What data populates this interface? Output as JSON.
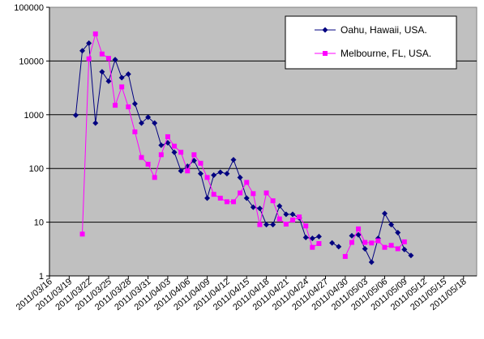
{
  "chart_data": {
    "type": "line",
    "title": "",
    "xlabel": "",
    "ylabel": "",
    "y_scale": "log",
    "ylim": [
      1,
      100000
    ],
    "y_ticks": [
      "1",
      "10",
      "100",
      "1000",
      "10000",
      "100000"
    ],
    "x_range": [
      "2011/03/16",
      "2011/05/20"
    ],
    "x_tick_labels": [
      "2011/03/16",
      "2011/03/19",
      "2011/03/22",
      "2011/03/25",
      "2011/03/28",
      "2011/03/31",
      "2011/04/03",
      "2011/04/06",
      "2011/04/09",
      "2011/04/12",
      "2011/04/15",
      "2011/04/18",
      "2011/04/21",
      "2011/04/24",
      "2011/04/27",
      "2011/04/30",
      "2011/05/03",
      "2011/05/06",
      "2011/05/09",
      "2011/05/12",
      "2011/05/15",
      "2011/05/18"
    ],
    "grid": "horizontal",
    "plot_background": "#c0c0c0",
    "legend_position": "top-right",
    "series": [
      {
        "name": "Oahu, Hawaii, USA.",
        "color": "#000080",
        "marker": "diamond",
        "points": [
          [
            "2011/03/20",
            980
          ],
          [
            "2011/03/21",
            15500
          ],
          [
            "2011/03/22",
            21500
          ],
          [
            "2011/03/23",
            700
          ],
          [
            "2011/03/24",
            6300
          ],
          [
            "2011/03/25",
            4200
          ],
          [
            "2011/03/26",
            10600
          ],
          [
            "2011/03/27",
            4900
          ],
          [
            "2011/03/28",
            5700
          ],
          [
            "2011/03/29",
            1600
          ],
          [
            "2011/03/30",
            700
          ],
          [
            "2011/03/31",
            900
          ],
          [
            "2011/04/01",
            700
          ],
          [
            "2011/04/02",
            270
          ],
          [
            "2011/04/03",
            300
          ],
          [
            "2011/04/04",
            200
          ],
          [
            "2011/04/05",
            90
          ],
          [
            "2011/04/06",
            110
          ],
          [
            "2011/04/07",
            140
          ],
          [
            "2011/04/08",
            80
          ],
          [
            "2011/04/09",
            28
          ],
          [
            "2011/04/10",
            75
          ],
          [
            "2011/04/11",
            85
          ],
          [
            "2011/04/12",
            80
          ],
          [
            "2011/04/13",
            145
          ],
          [
            "2011/04/14",
            68
          ],
          [
            "2011/04/15",
            28
          ],
          [
            "2011/04/16",
            19
          ],
          [
            "2011/04/17",
            18
          ],
          [
            "2011/04/18",
            9
          ],
          [
            "2011/04/19",
            9
          ],
          [
            "2011/04/20",
            20
          ],
          [
            "2011/04/21",
            14
          ],
          [
            "2011/04/22",
            14
          ],
          [
            "2011/04/23",
            12
          ],
          [
            "2011/04/24",
            5.2
          ],
          [
            "2011/04/25",
            5
          ],
          [
            "2011/04/26",
            5.4
          ],
          null,
          [
            "2011/04/28",
            4.1
          ],
          [
            "2011/04/29",
            3.5
          ],
          null,
          [
            "2011/05/01",
            5.6
          ],
          [
            "2011/05/02",
            5.8
          ],
          [
            "2011/05/03",
            3.2
          ],
          [
            "2011/05/04",
            1.8
          ],
          [
            "2011/05/05",
            5
          ],
          [
            "2011/05/06",
            14.5
          ],
          [
            "2011/05/07",
            9
          ],
          [
            "2011/05/08",
            6.4
          ],
          [
            "2011/05/09",
            3.1
          ],
          [
            "2011/05/10",
            2.4
          ]
        ]
      },
      {
        "name": "Melbourne, FL, USA.",
        "color": "#ff00ff",
        "marker": "square",
        "points": [
          [
            "2011/03/21",
            6
          ],
          [
            "2011/03/22",
            11000
          ],
          [
            "2011/03/23",
            32000
          ],
          [
            "2011/03/24",
            13500
          ],
          [
            "2011/03/25",
            11200
          ],
          [
            "2011/03/26",
            1500
          ],
          [
            "2011/03/27",
            3300
          ],
          [
            "2011/03/28",
            1400
          ],
          [
            "2011/03/29",
            480
          ],
          [
            "2011/03/30",
            160
          ],
          [
            "2011/03/31",
            120
          ],
          [
            "2011/04/01",
            68
          ],
          [
            "2011/04/02",
            180
          ],
          [
            "2011/04/03",
            390
          ],
          [
            "2011/04/04",
            260
          ],
          [
            "2011/04/05",
            200
          ],
          [
            "2011/04/06",
            90
          ],
          [
            "2011/04/07",
            180
          ],
          [
            "2011/04/08",
            125
          ],
          [
            "2011/04/09",
            68
          ],
          [
            "2011/04/10",
            33
          ],
          [
            "2011/04/11",
            28
          ],
          [
            "2011/04/12",
            24
          ],
          [
            "2011/04/13",
            24
          ],
          [
            "2011/04/14",
            35
          ],
          [
            "2011/04/15",
            55
          ],
          [
            "2011/04/16",
            34
          ],
          [
            "2011/04/17",
            9
          ],
          [
            "2011/04/18",
            35
          ],
          [
            "2011/04/19",
            25
          ],
          [
            "2011/04/20",
            11.5
          ],
          [
            "2011/04/21",
            9.2
          ],
          [
            "2011/04/22",
            11
          ],
          [
            "2011/04/23",
            12.5
          ],
          [
            "2011/04/24",
            8.5
          ],
          [
            "2011/04/25",
            3.4
          ],
          [
            "2011/04/26",
            4
          ],
          null,
          null,
          null,
          [
            "2011/04/30",
            2.3
          ],
          [
            "2011/05/01",
            4.2
          ],
          [
            "2011/05/02",
            7.5
          ],
          [
            "2011/05/03",
            4.2
          ],
          [
            "2011/05/04",
            4.1
          ],
          [
            "2011/05/05",
            4.5
          ],
          [
            "2011/05/06",
            3.4
          ],
          [
            "2011/05/07",
            3.7
          ],
          [
            "2011/05/08",
            3.2
          ],
          [
            "2011/05/09",
            4.3
          ]
        ]
      }
    ]
  }
}
